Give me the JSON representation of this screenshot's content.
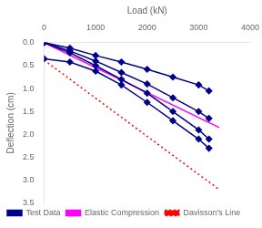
{
  "chart_data": {
    "type": "line",
    "xlabel": "Load (kN)",
    "ylabel": "Deflection (cm)",
    "xlim": [
      0,
      4000
    ],
    "ylim": [
      3.5,
      0
    ],
    "xticks": [
      0,
      1000,
      2000,
      3000,
      4000
    ],
    "yticks": [
      {
        "value": 0.0,
        "label": "0.0"
      },
      0.5,
      {
        "value": 1.0,
        "label": "1.0"
      },
      1.5,
      {
        "value": 2.0,
        "label": "2.0"
      },
      2.5,
      {
        "value": 3.0,
        "label": "3.0"
      },
      3.5
    ],
    "grid": false,
    "legend": "lower left",
    "series": [
      {
        "name": "Test Data",
        "color": "#00008B",
        "marker": "diamond",
        "line_style": "solid",
        "x": [
          0,
          500,
          1000,
          1500,
          2000,
          2500,
          3000,
          3200
        ],
        "values": [
          0.0,
          0.12,
          0.28,
          0.42,
          0.58,
          0.75,
          0.92,
          1.05
        ]
      },
      {
        "name": "Test Data",
        "color": "#00008B",
        "marker": "diamond",
        "line_style": "solid",
        "x": [
          0,
          500,
          1000,
          1500,
          2000,
          2500,
          3000,
          3200
        ],
        "values": [
          0.0,
          0.18,
          0.4,
          0.65,
          0.9,
          1.2,
          1.5,
          1.65
        ]
      },
      {
        "name": "Test Data",
        "color": "#00008B",
        "marker": "diamond",
        "line_style": "solid",
        "x": [
          0,
          500,
          1000,
          1500,
          2000,
          2500,
          3000,
          3200
        ],
        "values": [
          0.0,
          0.22,
          0.5,
          0.8,
          1.1,
          1.5,
          1.9,
          2.1
        ]
      },
      {
        "name": "Test Data",
        "color": "#00008B",
        "marker": "diamond",
        "line_style": "solid",
        "x": [
          0,
          500,
          1000,
          1500,
          2000,
          2500,
          3000,
          3200
        ],
        "values": [
          0.35,
          0.42,
          0.62,
          0.92,
          1.3,
          1.7,
          2.1,
          2.3
        ]
      },
      {
        "name": "Elastic Compression",
        "color": "#FF00FF",
        "marker": "none",
        "line_style": "solid",
        "x": [
          0,
          3400
        ],
        "values": [
          0.0,
          1.85
        ]
      },
      {
        "name": "Davisson's Line",
        "color": "#FF0000",
        "marker": "none",
        "line_style": "dotted",
        "x": [
          0,
          3400
        ],
        "values": [
          0.38,
          3.2
        ]
      }
    ]
  }
}
